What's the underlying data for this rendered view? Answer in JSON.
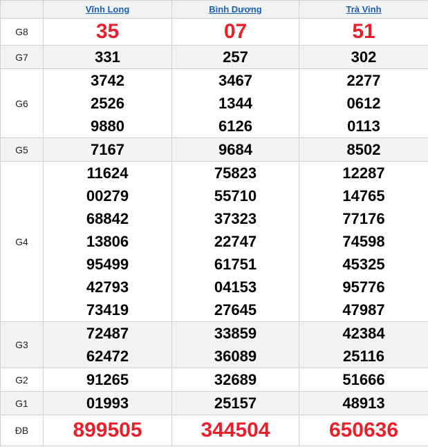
{
  "provinces": [
    "Vĩnh Long",
    "Bình Dương",
    "Trà Vinh"
  ],
  "prizes": [
    {
      "label": "G8",
      "style": "big",
      "gray": false,
      "values": [
        [
          "35"
        ],
        [
          "07"
        ],
        [
          "51"
        ]
      ]
    },
    {
      "label": "G7",
      "style": "normal",
      "gray": true,
      "values": [
        [
          "331"
        ],
        [
          "257"
        ],
        [
          "302"
        ]
      ]
    },
    {
      "label": "G6",
      "style": "normal",
      "gray": false,
      "values": [
        [
          "3742",
          "2526",
          "9880"
        ],
        [
          "3467",
          "1344",
          "6126"
        ],
        [
          "2277",
          "0612",
          "0113"
        ]
      ]
    },
    {
      "label": "G5",
      "style": "normal",
      "gray": true,
      "values": [
        [
          "7167"
        ],
        [
          "9684"
        ],
        [
          "8502"
        ]
      ]
    },
    {
      "label": "G4",
      "style": "normal",
      "gray": false,
      "values": [
        [
          "11624",
          "00279",
          "68842",
          "13806",
          "95499",
          "42793",
          "73419"
        ],
        [
          "75823",
          "55710",
          "37323",
          "22747",
          "61751",
          "04153",
          "27645"
        ],
        [
          "12287",
          "14765",
          "77176",
          "74598",
          "45325",
          "95776",
          "47987"
        ]
      ]
    },
    {
      "label": "G3",
      "style": "normal",
      "gray": true,
      "values": [
        [
          "72487",
          "62472"
        ],
        [
          "33859",
          "36089"
        ],
        [
          "42384",
          "25116"
        ]
      ]
    },
    {
      "label": "G2",
      "style": "normal",
      "gray": false,
      "values": [
        [
          "91265"
        ],
        [
          "32689"
        ],
        [
          "51666"
        ]
      ]
    },
    {
      "label": "G1",
      "style": "normal",
      "gray": true,
      "values": [
        [
          "01993"
        ],
        [
          "25157"
        ],
        [
          "48913"
        ]
      ]
    },
    {
      "label": "ĐB",
      "style": "db",
      "gray": false,
      "values": [
        [
          "899505"
        ],
        [
          "344504"
        ],
        [
          "650636"
        ]
      ]
    }
  ],
  "colors": {
    "link": "#1a5fb4",
    "highlight": "#e8202a",
    "row_alt": "#f3f3f3"
  }
}
